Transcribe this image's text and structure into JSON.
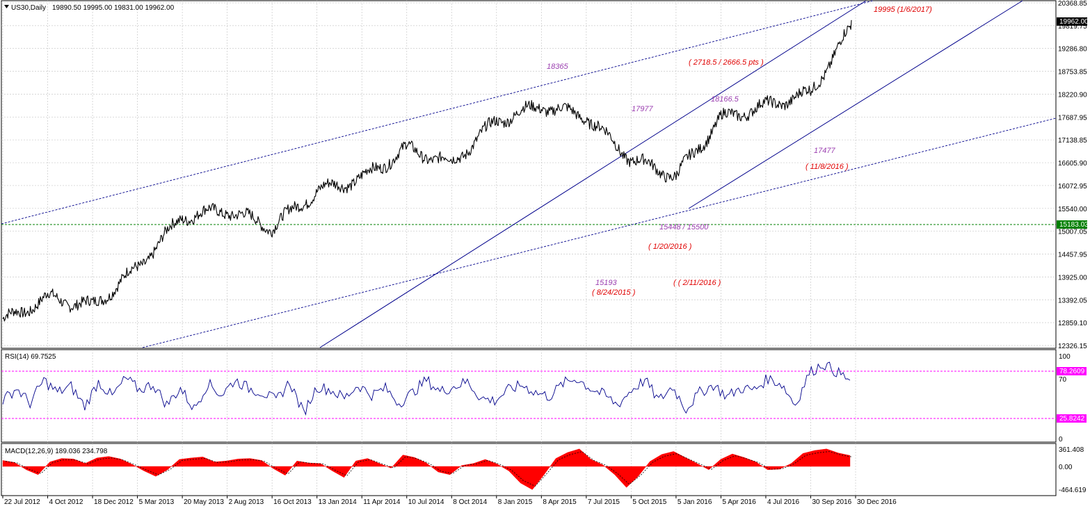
{
  "colors": {
    "background": "#ffffff",
    "grid": "#c8c8c8",
    "price_line": "#000000",
    "trendline": "#00008b",
    "support_line": "#008000",
    "rsi_line": "#00008b",
    "rsi_levels": "#ff00ff",
    "macd_histogram": "#ff0000",
    "macd_signal": "#000000",
    "annotation_red": "#e00000",
    "annotation_purple": "#9b3fb0"
  },
  "header": {
    "menu_icon": "triangle-down-icon",
    "symbol": "US30,Daily",
    "ohlc": "19890.50 19995.00 19831.00 19962.00"
  },
  "price_scale": {
    "ticks": [
      "20368.85",
      "19819.75",
      "19286.80",
      "18753.85",
      "18220.90",
      "17687.95",
      "17138.85",
      "16605.90",
      "16072.95",
      "15540.00",
      "15007.05",
      "14457.95",
      "13925.00",
      "13392.05",
      "12859.10",
      "12326.15"
    ],
    "current_price_label": "19962.00",
    "support_label": "15183.03"
  },
  "annotations": {
    "peak_2017": "19995 (1/6/2017)",
    "range_pts": "( 2718.5 / 2666.5  pts )",
    "high_18365": "18365",
    "high_17977": "17977",
    "high_18166": "18166.5",
    "low_17477": "17477",
    "date_11_8": "( 11/8/2016 )",
    "low_15448": "15448 / 15500",
    "date_1_20": "( 1/20/2016 )",
    "date_2_11": "( ( 2/11/2016 )",
    "low_15193": "15193",
    "date_8_24": "( 8/24/2015 )"
  },
  "rsi_panel": {
    "title": "RSI(14) 69.7525",
    "ticks": [
      "100",
      "70",
      "0"
    ],
    "upper_label": "78.2609",
    "lower_label": "25.8242"
  },
  "macd_panel": {
    "title": "MACD(12,26,9) 189.036 234.798",
    "ticks": [
      "361.408",
      "0.00",
      "-464.619"
    ]
  },
  "time_axis": {
    "labels": [
      "22 Jul 2012",
      "4 Oct 2012",
      "18 Dec 2012",
      "5 Mar 2013",
      "20 May 2013",
      "2 Aug 2013",
      "16 Oct 2013",
      "13 Jan 2014",
      "11 Apr 2014",
      "10 Jul 2014",
      "8 Oct 2014",
      "8 Jan 2015",
      "8 Apr 2015",
      "7 Jul 2015",
      "5 Oct 2015",
      "5 Jan 2016",
      "5 Apr 2016",
      "4 Jul 2016",
      "30 Sep 2016",
      "30 Dec 2016"
    ]
  },
  "chart_data": {
    "type": "line",
    "symbol": "US30",
    "timeframe": "Daily",
    "ylim": [
      12326.15,
      20368.85
    ],
    "grid": true,
    "series": [
      {
        "name": "US30",
        "x": [
          "22 Jul 2012",
          "4 Oct 2012",
          "18 Dec 2012",
          "5 Mar 2013",
          "20 May 2013",
          "2 Aug 2013",
          "16 Oct 2013",
          "13 Jan 2014",
          "11 Apr 2014",
          "10 Jul 2014",
          "8 Oct 2014",
          "8 Jan 2015",
          "8 Apr 2015",
          "7 Jul 2015",
          "5 Oct 2015",
          "5 Jan 2016",
          "5 Apr 2016",
          "4 Jul 2016",
          "30 Sep 2016",
          "30 Dec 2016"
        ],
        "values": [
          12900,
          13450,
          13250,
          14150,
          15350,
          15500,
          15100,
          15950,
          16250,
          16950,
          16600,
          17600,
          17950,
          17700,
          16700,
          16300,
          17650,
          17950,
          18250,
          19800
        ]
      }
    ],
    "key_levels": [
      {
        "label": "18365",
        "value": 18365
      },
      {
        "label": "17977",
        "value": 17977
      },
      {
        "label": "18166.5",
        "value": 18166.5
      },
      {
        "label": "17477",
        "value": 17477
      },
      {
        "label": "15448 / 15500",
        "value": 15500
      },
      {
        "label": "15193",
        "value": 15193
      },
      {
        "label": "19995 (1/6/2017)",
        "value": 19995
      }
    ],
    "support_level": 15183.03,
    "rsi": {
      "period": 14,
      "last": 69.7525,
      "levels": [
        78.2609,
        25.8242
      ],
      "ylim": [
        0,
        100
      ],
      "values": [
        45,
        60,
        42,
        70,
        55,
        62,
        38,
        68,
        50,
        72,
        58,
        65,
        40,
        60,
        35,
        66,
        52,
        70,
        60,
        55,
        45,
        68,
        30,
        62,
        58,
        48,
        64,
        52,
        60,
        42,
        55,
        70,
        56,
        62,
        68,
        48,
        45,
        58,
        64,
        55,
        50,
        66,
        72,
        60,
        52,
        40,
        58,
        70,
        45,
        62,
        35,
        55,
        64,
        50,
        60,
        58,
        72,
        65,
        40,
        78,
        90,
        80,
        69.75
      ]
    },
    "macd": {
      "params": [
        12,
        26,
        9
      ],
      "main": 189.036,
      "signal": 234.798,
      "ylim": [
        -464.619,
        361.408
      ],
      "histogram": [
        120,
        80,
        -60,
        -150,
        90,
        160,
        150,
        60,
        170,
        200,
        150,
        40,
        -80,
        -180,
        -60,
        140,
        170,
        190,
        90,
        110,
        150,
        160,
        120,
        -40,
        -160,
        110,
        70,
        60,
        -80,
        -200,
        110,
        160,
        60,
        -30,
        230,
        180,
        70,
        -100,
        -150,
        20,
        60,
        140,
        50,
        -80,
        -300,
        -420,
        -150,
        160,
        280,
        350,
        140,
        30,
        -150,
        -380,
        -180,
        100,
        240,
        300,
        180,
        60,
        -60,
        140,
        250,
        180,
        90,
        -60,
        -50,
        60,
        260,
        320,
        350,
        270,
        220
      ]
    }
  }
}
